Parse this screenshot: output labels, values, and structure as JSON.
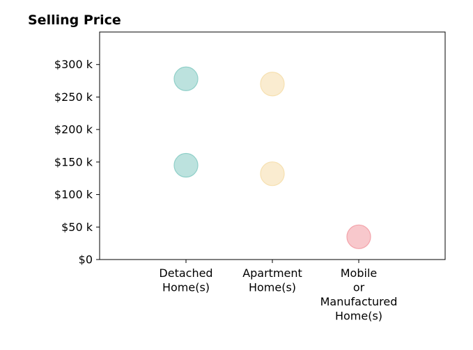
{
  "chart_data": {
    "type": "scatter",
    "title": "Selling Price",
    "xlabel": "",
    "ylabel": "",
    "categories": [
      [
        "Detached",
        "Home(s)"
      ],
      [
        "Apartment",
        "Home(s)"
      ],
      [
        "Mobile",
        "or",
        "Manufactured",
        "Home(s)"
      ]
    ],
    "xlim": [
      -1,
      3
    ],
    "ylim": [
      0,
      350000
    ],
    "yticks": [
      0,
      50000,
      100000,
      150000,
      200000,
      250000,
      300000
    ],
    "ytick_labels": [
      "$0",
      "$50 k",
      "$100 k",
      "$150 k",
      "$200 k",
      "$250 k",
      "$300 k"
    ],
    "grid": false,
    "legend": "none",
    "points": [
      {
        "category": 0,
        "value": 278000,
        "color": "#8fcfc8"
      },
      {
        "category": 0,
        "value": 145000,
        "color": "#8fcfc8"
      },
      {
        "category": 1,
        "value": 270000,
        "color": "#f6e0b0"
      },
      {
        "category": 1,
        "value": 132000,
        "color": "#f6e0b0"
      },
      {
        "category": 2,
        "value": 35000,
        "color": "#f3a3aa"
      }
    ],
    "point_opacity": 0.6
  }
}
